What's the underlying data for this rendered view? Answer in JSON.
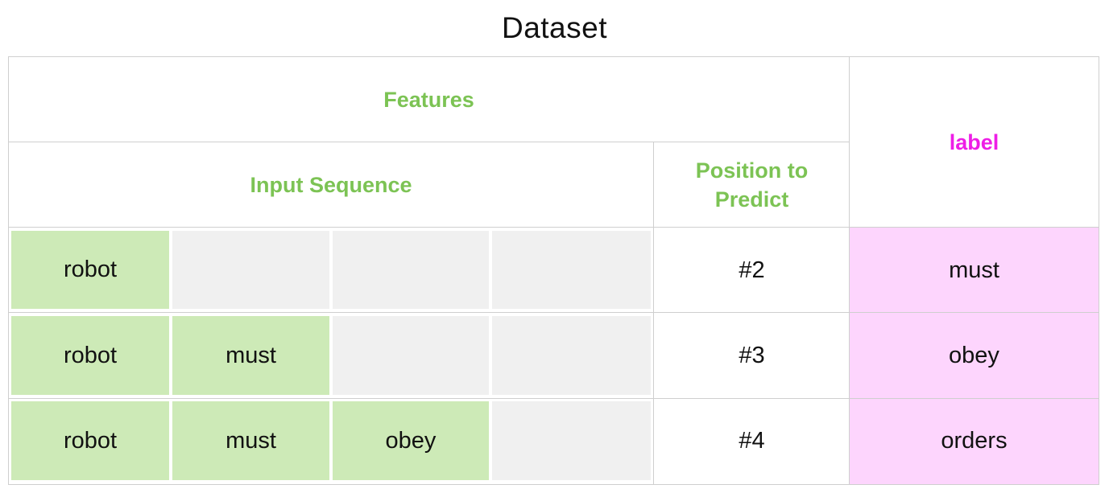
{
  "title": "Dataset",
  "colors": {
    "feature_header": "#7cc354",
    "label_header": "#ee1ee6",
    "token_filled": "#cdeab7",
    "token_empty": "#f0f0f0",
    "label_fill": "#fdd5fd",
    "grid_line": "#cfcfcf"
  },
  "headers": {
    "features": "Features",
    "input_sequence": "Input Sequence",
    "position_to_predict_line1": "Position to",
    "position_to_predict_line2": "Predict",
    "label": "label"
  },
  "rows": [
    {
      "tokens": [
        "robot",
        "",
        "",
        ""
      ],
      "position": "#2",
      "label": "must"
    },
    {
      "tokens": [
        "robot",
        "must",
        "",
        ""
      ],
      "position": "#3",
      "label": "obey"
    },
    {
      "tokens": [
        "robot",
        "must",
        "obey",
        ""
      ],
      "position": "#4",
      "label": "orders"
    }
  ]
}
